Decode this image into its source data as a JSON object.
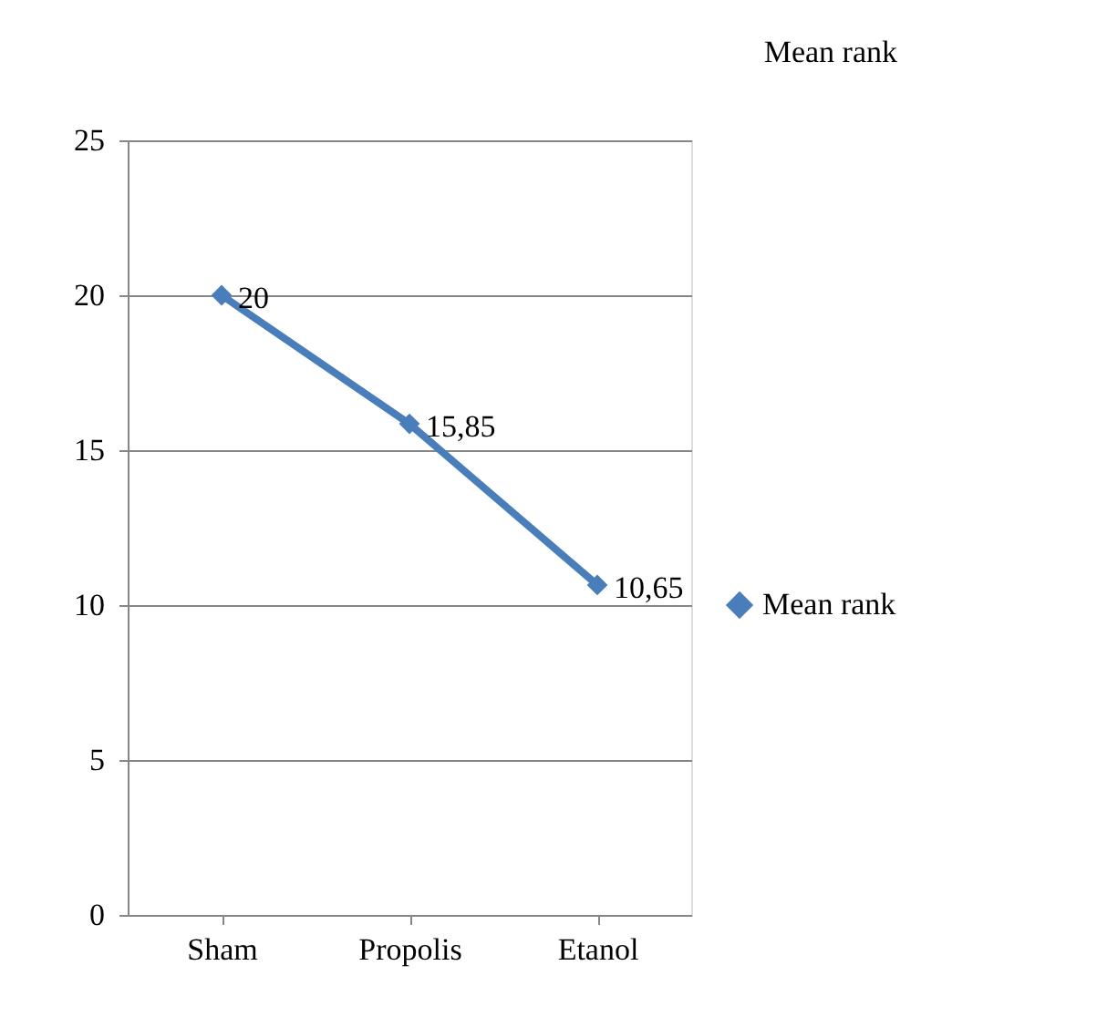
{
  "chart_data": {
    "type": "line",
    "title": "Mean rank",
    "categories": [
      "Sham",
      "Propolis",
      "Etanol"
    ],
    "series": [
      {
        "name": "Mean rank",
        "color": "#4a7ebb",
        "values": [
          20,
          15.85,
          10.65
        ],
        "value_labels": [
          "20",
          "15,85",
          "10,65"
        ]
      }
    ],
    "ylim": [
      0,
      25
    ],
    "yticks": [
      0,
      5,
      10,
      15,
      20,
      25
    ],
    "grid": "y",
    "legend": "right",
    "marker": "diamond",
    "line_style": "solid"
  }
}
